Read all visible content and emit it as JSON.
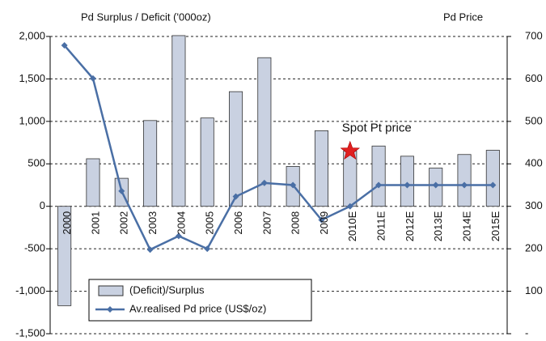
{
  "chart_data": {
    "type": "bar_line",
    "title": "Pd Surplus / Deficit ('000oz)",
    "y2_title": "Pd Price",
    "categories": [
      "2000",
      "2001",
      "2002",
      "2003",
      "2004",
      "2005",
      "2006",
      "2007",
      "2008",
      "2009",
      "2010E",
      "2011E",
      "2012E",
      "2013E",
      "2014E",
      "2015E"
    ],
    "series": [
      {
        "name": "(Deficit)/Surplus",
        "type": "bar",
        "color": "#c9d1e1",
        "values": [
          -1170,
          560,
          330,
          1010,
          2010,
          1040,
          1350,
          1750,
          470,
          890,
          650,
          710,
          590,
          450,
          610,
          660
        ]
      },
      {
        "name": "Av.realised Pd price (US$/oz)",
        "type": "line",
        "axis": "y2",
        "color": "#4a6fa5",
        "values": [
          679,
          601,
          336,
          198,
          230,
          200,
          323,
          355,
          350,
          268,
          300,
          350,
          350,
          350,
          350,
          350
        ]
      }
    ],
    "ylim": [
      -1500,
      2000
    ],
    "yticks": [
      {
        "value": -1500,
        "label": "-1,500"
      },
      {
        "value": -1000,
        "label": "-1,000"
      },
      -500,
      0,
      500,
      {
        "value": 1000,
        "label": "1,000"
      },
      {
        "value": 1500,
        "label": "1,500"
      },
      {
        "value": 2000,
        "label": "2,000"
      }
    ],
    "y2lim": [
      0,
      700
    ],
    "y2ticks": [
      {
        "value": 0,
        "label": "-"
      },
      100,
      200,
      300,
      400,
      500,
      600,
      700
    ],
    "grid": true,
    "legend": "bottom-left",
    "annotation": {
      "text": "Spot Pt price",
      "x": "2010E",
      "y": 650,
      "color": "#e02020"
    }
  }
}
